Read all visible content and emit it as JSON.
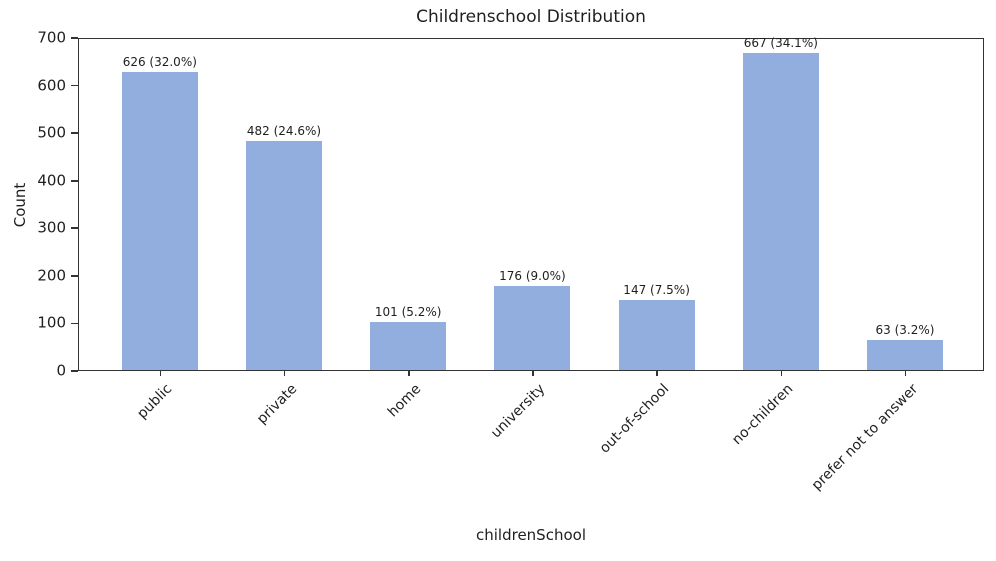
{
  "chart_data": {
    "type": "bar",
    "title": "Childrenschool Distribution",
    "xlabel": "childrenSchool",
    "ylabel": "Count",
    "categories": [
      "public",
      "private",
      "home",
      "university",
      "out-of-school",
      "no-children",
      "prefer not to answer"
    ],
    "values": [
      626,
      482,
      101,
      176,
      147,
      667,
      63
    ],
    "percentages": [
      32.0,
      24.6,
      5.2,
      9.0,
      7.5,
      34.1,
      3.2
    ],
    "bar_labels": [
      "626 (32.0%)",
      "482 (24.6%)",
      "101 (5.2%)",
      "176 (9.0%)",
      "147 (7.5%)",
      "667 (34.1%)",
      "63 (3.2%)"
    ],
    "ylim": [
      0,
      700
    ],
    "yticks": [
      0,
      100,
      200,
      300,
      400,
      500,
      600,
      700
    ],
    "bar_color": "#92aede",
    "axis_color": "#333333",
    "grid": false,
    "legend": null,
    "x_tick_rotation_deg": 45
  }
}
